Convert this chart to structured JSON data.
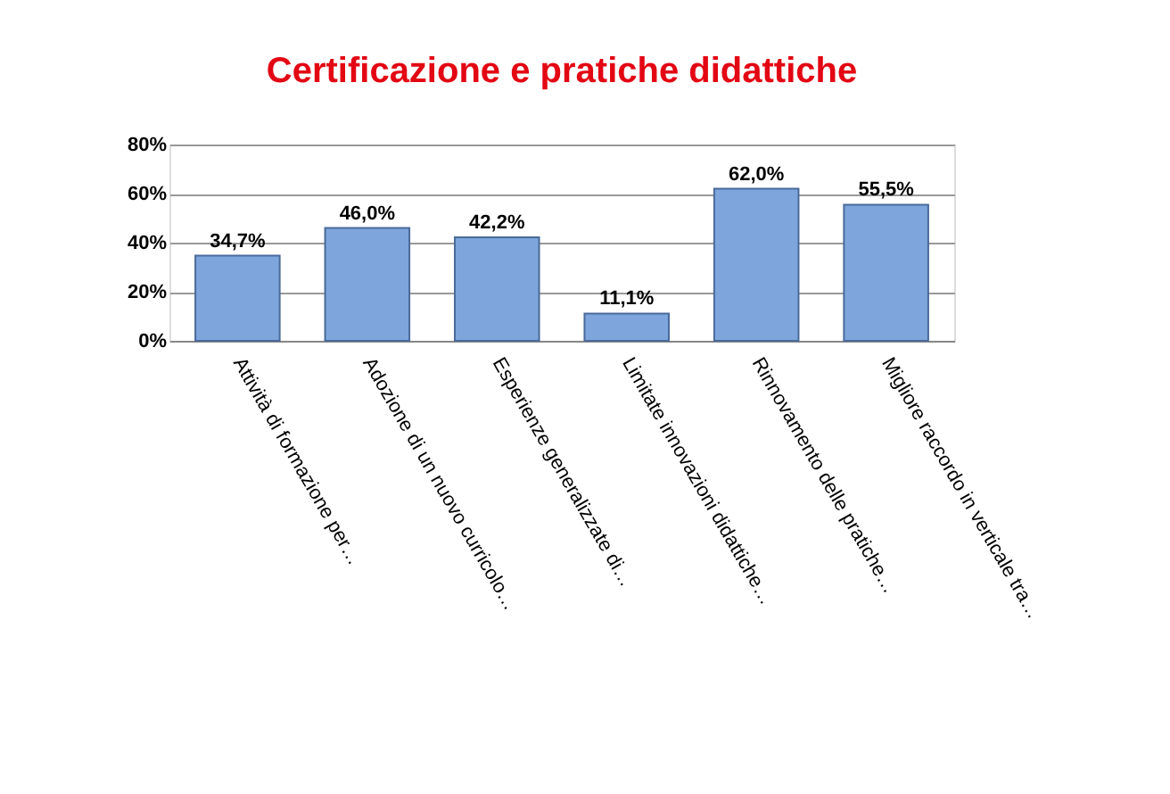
{
  "chart_data": {
    "type": "bar",
    "title": "Certificazione e pratiche didattiche",
    "categories": [
      "Attività di formazione per…",
      "Adozione di un nuovo curricolo…",
      "Esperienze generalizzate  di…",
      "Limitate innovazioni didattiche…",
      "Rinnovamento delle pratiche…",
      "Migliore raccordo in verticale tra…"
    ],
    "values": [
      34.7,
      46.0,
      42.2,
      11.1,
      62.0,
      55.5
    ],
    "value_labels": [
      "34,7%",
      "46,0%",
      "42,2%",
      "11,1%",
      "62,0%",
      "55,5%"
    ],
    "color": "#7ea6dc",
    "ylim": [
      0,
      80
    ],
    "yticks": [
      {
        "value": 0,
        "label": "0%"
      },
      {
        "value": 20,
        "label": "20%"
      },
      {
        "value": 40,
        "label": "40%"
      },
      {
        "value": 60,
        "label": "60%"
      },
      {
        "value": 80,
        "label": "80%"
      }
    ],
    "grid": "y"
  }
}
